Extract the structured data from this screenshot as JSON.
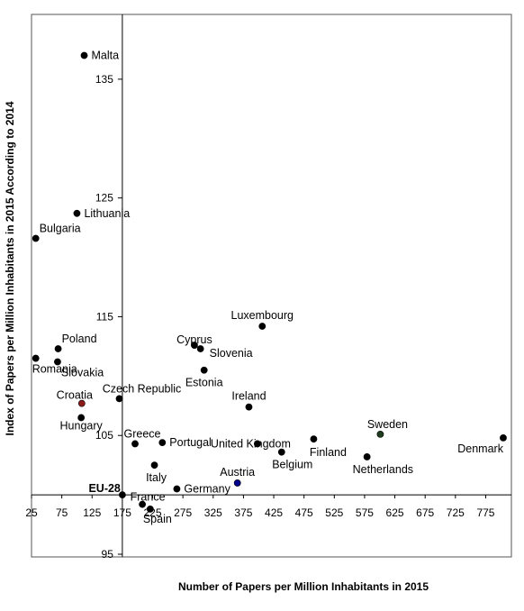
{
  "chart_data": {
    "type": "scatter",
    "xlabel": "Number of Papers per Million Inhabitants in 2015",
    "ylabel": "Index of Papers per Million Inhabitants in 2015 According to 2014",
    "xlim": [
      25,
      810
    ],
    "ylim": [
      95,
      140
    ],
    "x_cross": 175,
    "y_cross": 100,
    "x_ticks": [
      25,
      75,
      125,
      175,
      225,
      275,
      325,
      375,
      425,
      475,
      525,
      575,
      625,
      675,
      725,
      775
    ],
    "x_tick_labels": [
      "25",
      "75",
      "125",
      "175",
      "225",
      "275",
      "325",
      "375",
      "425",
      "475",
      "525",
      "575",
      "625",
      "675",
      "725",
      "775"
    ],
    "y_ticks": [
      95,
      105,
      115,
      125,
      135
    ],
    "y_tick_labels": [
      "95",
      "105",
      "115",
      "125",
      "135"
    ],
    "grid": false,
    "points": [
      {
        "label": "Malta",
        "x": 112,
        "y": 137.0,
        "color": "#000000",
        "label_color": "#000000",
        "anchor": "right"
      },
      {
        "label": "Lithuania",
        "x": 100,
        "y": 123.7,
        "color": "#000000",
        "label_color": "#000000",
        "anchor": "right"
      },
      {
        "label": "Bulgaria",
        "x": 32,
        "y": 121.6,
        "color": "#000000",
        "label_color": "#000000",
        "anchor": "above-right"
      },
      {
        "label": "Luxembourg",
        "x": 406,
        "y": 114.2,
        "color": "#000000",
        "label_color": "#000000",
        "anchor": "above"
      },
      {
        "label": "Poland",
        "x": 69,
        "y": 112.3,
        "color": "#000000",
        "label_color": "#000000",
        "anchor": "above-right"
      },
      {
        "label": "Romania",
        "x": 32,
        "y": 111.5,
        "color": "#000000",
        "label_color": "#000000",
        "anchor": "below-right"
      },
      {
        "label": "Slovakia",
        "x": 68,
        "y": 111.2,
        "color": "#000000",
        "label_color": "#000000",
        "anchor": "below-right"
      },
      {
        "label": "Cyprus",
        "x": 294,
        "y": 112.6,
        "color": "#000000",
        "label_color": "#000000",
        "anchor": "above-left"
      },
      {
        "label": "Slovenia",
        "x": 304,
        "y": 112.3,
        "color": "#000000",
        "label_color": "#e00000",
        "anchor": "right"
      },
      {
        "label": "Estonia",
        "x": 310,
        "y": 110.5,
        "color": "#000000",
        "label_color": "#000000",
        "anchor": "below"
      },
      {
        "label": "Czech Republic",
        "x": 170,
        "y": 108.1,
        "color": "#000000",
        "label_color": "#000000",
        "anchor": "above"
      },
      {
        "label": "Croatia",
        "x": 108,
        "y": 107.7,
        "color": "#8b1a1a",
        "label_color": "#000000",
        "anchor": "above"
      },
      {
        "label": "Ireland",
        "x": 384,
        "y": 107.4,
        "color": "#000000",
        "label_color": "#000000",
        "anchor": "above"
      },
      {
        "label": "Hungary",
        "x": 107,
        "y": 106.5,
        "color": "#000000",
        "label_color": "#000000",
        "anchor": "below"
      },
      {
        "label": "Sweden",
        "x": 601,
        "y": 105.1,
        "color": "#1f3d1f",
        "label_color": "#000000",
        "anchor": "above"
      },
      {
        "label": "Denmark",
        "x": 804,
        "y": 104.8,
        "color": "#000000",
        "label_color": "#000000",
        "anchor": "below-left"
      },
      {
        "label": "Greece",
        "x": 196,
        "y": 104.3,
        "color": "#000000",
        "label_color": "#000000",
        "anchor": "above"
      },
      {
        "label": "Portugal",
        "x": 241,
        "y": 104.4,
        "color": "#000000",
        "label_color": "#000000",
        "anchor": "right"
      },
      {
        "label": "United Kingdom",
        "x": 398,
        "y": 104.3,
        "color": "#000000",
        "label_color": "#000000",
        "anchor": "left-inline"
      },
      {
        "label": "Finland",
        "x": 491,
        "y": 104.7,
        "color": "#000000",
        "label_color": "#000000",
        "anchor": "below"
      },
      {
        "label": "Belgium",
        "x": 438,
        "y": 103.6,
        "color": "#000000",
        "label_color": "#000000",
        "anchor": "below"
      },
      {
        "label": "Netherlands",
        "x": 579,
        "y": 103.2,
        "color": "#000000",
        "label_color": "#000000",
        "anchor": "below-right"
      },
      {
        "label": "Italy",
        "x": 228,
        "y": 102.5,
        "color": "#000000",
        "label_color": "#000000",
        "anchor": "below"
      },
      {
        "label": "Austria",
        "x": 365,
        "y": 101.0,
        "color": "#00008b",
        "label_color": "#000000",
        "anchor": "above"
      },
      {
        "label": "Germany",
        "x": 265,
        "y": 100.5,
        "color": "#000000",
        "label_color": "#000000",
        "anchor": "right"
      },
      {
        "label": "EU-28",
        "x": 175,
        "y": 100.0,
        "color": "#000000",
        "label_color": "#f0b400",
        "anchor": "above-left"
      },
      {
        "label": "France",
        "x": 208,
        "y": 99.2,
        "color": "#000000",
        "label_color": "#000000",
        "anchor": "above"
      },
      {
        "label": "Spain",
        "x": 221,
        "y": 98.8,
        "color": "#000000",
        "label_color": "#000000",
        "anchor": "below"
      }
    ]
  }
}
